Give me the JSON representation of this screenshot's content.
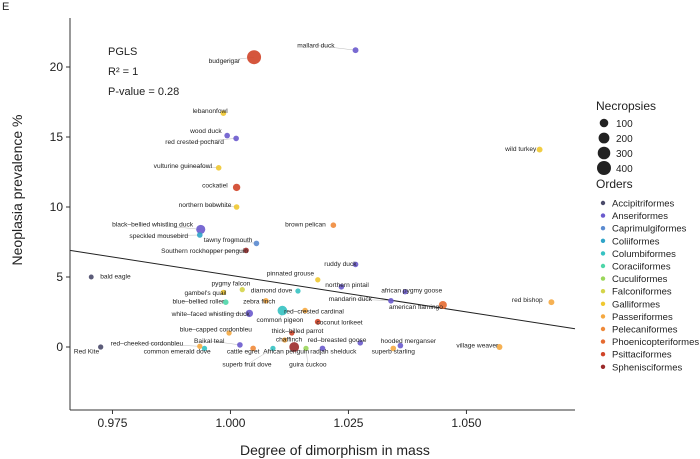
{
  "panel_label": "E",
  "chart_data": {
    "type": "scatter",
    "xlabel": "Degree of dimorphism in mass",
    "ylabel": "Neoplasia prevalence %",
    "xlim": [
      0.966,
      1.073
    ],
    "ylim": [
      -4.5,
      23.5
    ],
    "x_ticks": [
      {
        "value": 0.975,
        "label": "0.975"
      },
      {
        "value": 1.0,
        "label": "1.000"
      },
      {
        "value": 1.025,
        "label": "1.025"
      },
      {
        "value": 1.05,
        "label": "1.050"
      }
    ],
    "y_ticks": [
      {
        "value": 0,
        "label": "0"
      },
      {
        "value": 5,
        "label": "5"
      },
      {
        "value": 10,
        "label": "10"
      },
      {
        "value": 15,
        "label": "15"
      },
      {
        "value": 20,
        "label": "20"
      }
    ],
    "annotation": {
      "line1": "PGLS",
      "line2": "R² = 1",
      "line3": "P-value = 0.28"
    },
    "regression_line": {
      "x1": 0.966,
      "y1": 6.9,
      "x2": 1.073,
      "y2": 1.3,
      "color": "#222222"
    },
    "size_legend": {
      "title": "Necropsies",
      "entries": [
        {
          "label": "100",
          "value": 100
        },
        {
          "label": "200",
          "value": 200
        },
        {
          "label": "300",
          "value": 300
        },
        {
          "label": "400",
          "value": 400
        }
      ]
    },
    "color_legend": {
      "title": "Orders",
      "entries": [
        {
          "label": "Accipitriformes",
          "color": "#4a4a6a"
        },
        {
          "label": "Anseriformes",
          "color": "#6a5acd"
        },
        {
          "label": "Caprimulgiformes",
          "color": "#5b8bd0"
        },
        {
          "label": "Coliiformes",
          "color": "#2fa4c8"
        },
        {
          "label": "Columbiformes",
          "color": "#35c2c2"
        },
        {
          "label": "Coraciiformes",
          "color": "#4ed6a8"
        },
        {
          "label": "Cuculiformes",
          "color": "#9ad65a"
        },
        {
          "label": "Falconiformes",
          "color": "#d4d44a"
        },
        {
          "label": "Galliformes",
          "color": "#f0c830"
        },
        {
          "label": "Passeriformes",
          "color": "#f5a840"
        },
        {
          "label": "Pelecaniformes",
          "color": "#ef8a3a"
        },
        {
          "label": "Phoenicopteriformes",
          "color": "#e56a30"
        },
        {
          "label": "Psittaciformes",
          "color": "#d04428"
        },
        {
          "label": "Sphenisciformes",
          "color": "#9b2a2a"
        }
      ]
    },
    "points": [
      {
        "species": "mallard duck",
        "order": "Anseriformes",
        "x": 1.0265,
        "y": 21.2,
        "necropsies": 25,
        "color": "#6a5acd",
        "lx": 1.0181,
        "ly": 21.4,
        "anchor": "middle",
        "leader": false
      },
      {
        "species": "budgerigar",
        "order": "Psittaciformes",
        "x": 1.005,
        "y": 20.7,
        "necropsies": 400,
        "color": "#d04428",
        "lx": 0.9987,
        "ly": 20.3,
        "anchor": "middle",
        "leader": false
      },
      {
        "species": "lebanonfowl",
        "order": "Galliformes",
        "x": 0.9985,
        "y": 16.7,
        "necropsies": 20,
        "color": "#f0c830",
        "lx": 0.9957,
        "ly": 16.7,
        "anchor": "middle",
        "leader": false
      },
      {
        "species": "wood duck",
        "order": "Anseriformes",
        "x": 0.9993,
        "y": 15.1,
        "necropsies": 20,
        "color": "#6a5acd",
        "lx": 0.9948,
        "ly": 15.3,
        "anchor": "middle",
        "leader": false
      },
      {
        "species": "red crested pochard",
        "order": "Anseriformes",
        "x": 1.0012,
        "y": 14.9,
        "necropsies": 20,
        "color": "#6a5acd",
        "lx": 0.9924,
        "ly": 14.5,
        "anchor": "middle",
        "leader": false
      },
      {
        "species": "wild turkey",
        "order": "Galliformes",
        "x": 1.0655,
        "y": 14.1,
        "necropsies": 25,
        "color": "#f0c830",
        "lx": 1.0615,
        "ly": 14.0,
        "anchor": "middle",
        "leader": false
      },
      {
        "species": "vulturine guineafowl",
        "order": "Galliformes",
        "x": 0.9975,
        "y": 12.8,
        "necropsies": 20,
        "color": "#f0c830",
        "lx": 0.9899,
        "ly": 12.8,
        "anchor": "middle",
        "leader": false
      },
      {
        "species": "cockatiel",
        "order": "Psittaciformes",
        "x": 1.0013,
        "y": 11.4,
        "necropsies": 60,
        "color": "#d04428",
        "lx": 0.9967,
        "ly": 11.4,
        "anchor": "middle",
        "leader": false
      },
      {
        "species": "northern bobwhite",
        "order": "Galliformes",
        "x": 1.0013,
        "y": 10.0,
        "necropsies": 20,
        "color": "#f0c830",
        "lx": 0.9946,
        "ly": 10.0,
        "anchor": "middle",
        "leader": false
      },
      {
        "species": "brown pelican",
        "order": "Pelecaniformes",
        "x": 1.0218,
        "y": 8.7,
        "necropsies": 20,
        "color": "#ef8a3a",
        "lx": 1.0159,
        "ly": 8.6,
        "anchor": "middle",
        "leader": false
      },
      {
        "species": "black–bellied whistling duck",
        "order": "Anseriformes",
        "x": 0.9937,
        "y": 8.4,
        "necropsies": 120,
        "color": "#6a5acd",
        "lx": 0.9835,
        "ly": 8.6,
        "anchor": "middle",
        "leader": false
      },
      {
        "species": "speckled mousebird",
        "order": "Coliiformes",
        "x": 0.9935,
        "y": 8.0,
        "necropsies": 20,
        "color": "#2fa4c8",
        "lx": 0.9848,
        "ly": 7.8,
        "anchor": "middle",
        "leader": false
      },
      {
        "species": "tawny frogmouth",
        "order": "Caprimulgiformes",
        "x": 1.0055,
        "y": 7.4,
        "necropsies": 20,
        "color": "#5b8bd0",
        "lx": 0.9995,
        "ly": 7.5,
        "anchor": "middle",
        "leader": false
      },
      {
        "species": "Southern rockhopper penguin",
        "order": "Sphenisciformes",
        "x": 1.0033,
        "y": 6.9,
        "necropsies": 20,
        "color": "#9b2a2a",
        "lx": 0.9945,
        "ly": 6.7,
        "anchor": "middle",
        "leader": false
      },
      {
        "species": "ruddy duck",
        "order": "Anseriformes",
        "x": 1.0265,
        "y": 5.9,
        "necropsies": 20,
        "color": "#6a5acd",
        "lx": 1.0233,
        "ly": 5.8,
        "anchor": "middle",
        "leader": false
      },
      {
        "species": "bald eagle",
        "order": "Accipitriformes",
        "x": 0.9705,
        "y": 5.0,
        "necropsies": 10,
        "color": "#4a4a6a",
        "lx": 0.9724,
        "ly": 4.9,
        "anchor": "start",
        "leader": false
      },
      {
        "species": "pinnated grouse",
        "order": "Galliformes",
        "x": 1.0185,
        "y": 4.8,
        "necropsies": 15,
        "color": "#f0c830",
        "lx": 1.0127,
        "ly": 5.1,
        "anchor": "middle",
        "leader": false
      },
      {
        "species": "northern pintail",
        "order": "Anseriformes",
        "x": 1.0235,
        "y": 4.3,
        "necropsies": 20,
        "color": "#6a5acd",
        "lx": 1.0247,
        "ly": 4.3,
        "anchor": "middle",
        "leader": false
      },
      {
        "species": "pygmy falcon",
        "order": "Falconiformes",
        "x": 1.0025,
        "y": 4.1,
        "necropsies": 15,
        "color": "#d4d44a",
        "lx": 1.0001,
        "ly": 4.4,
        "anchor": "middle",
        "leader": false
      },
      {
        "species": "diamond dove",
        "order": "Columbiformes",
        "x": 1.0143,
        "y": 4.0,
        "necropsies": 15,
        "color": "#35c2c2",
        "lx": 1.0087,
        "ly": 3.9,
        "anchor": "middle",
        "leader": false
      },
      {
        "species": "african pygmy goose",
        "order": "Anseriformes",
        "x": 1.037,
        "y": 3.95,
        "necropsies": 15,
        "color": "#6a5acd",
        "lx": 1.0384,
        "ly": 3.9,
        "anchor": "middle",
        "leader": false
      },
      {
        "species": "gambel's quail",
        "order": "Galliformes",
        "x": 0.9985,
        "y": 3.9,
        "necropsies": 15,
        "color": "#f0c830",
        "lx": 0.9947,
        "ly": 3.7,
        "anchor": "middle",
        "leader": false
      },
      {
        "species": "zebra finch",
        "order": "Passeriformes",
        "x": 1.0075,
        "y": 3.3,
        "necropsies": 20,
        "color": "#f5a840",
        "lx": 1.0061,
        "ly": 3.1,
        "anchor": "middle",
        "leader": false
      },
      {
        "species": "blue–bellied roller",
        "order": "Coraciiformes",
        "x": 0.999,
        "y": 3.2,
        "necropsies": 20,
        "color": "#4ed6a8",
        "lx": 0.9932,
        "ly": 3.1,
        "anchor": "middle",
        "leader": false
      },
      {
        "species": "mandarin duck",
        "order": "Anseriformes",
        "x": 1.034,
        "y": 3.3,
        "necropsies": 20,
        "color": "#6a5acd",
        "lx": 1.0254,
        "ly": 3.3,
        "anchor": "middle",
        "leader": false
      },
      {
        "species": "red bishop",
        "order": "Passeriformes",
        "x": 1.068,
        "y": 3.2,
        "necropsies": 25,
        "color": "#f5a840",
        "lx": 1.0629,
        "ly": 3.2,
        "anchor": "middle",
        "leader": false
      },
      {
        "species": "american flamingo",
        "order": "Phoenicopteriformes",
        "x": 1.045,
        "y": 3.0,
        "necropsies": 80,
        "color": "#e56a30",
        "lx": 1.0393,
        "ly": 2.7,
        "anchor": "middle",
        "leader": false
      },
      {
        "species": "red–crested cardinal",
        "order": "Passeriformes",
        "x": 1.0158,
        "y": 2.6,
        "necropsies": 20,
        "color": "#f5a840",
        "lx": 1.0177,
        "ly": 2.4,
        "anchor": "middle",
        "leader": false
      },
      {
        "species": "white–faced whistling duck",
        "order": "Anseriformes",
        "x": 1.004,
        "y": 2.4,
        "necropsies": 60,
        "color": "#6a5acd",
        "lx": 0.9958,
        "ly": 2.2,
        "anchor": "middle",
        "leader": false
      },
      {
        "species": "common pigeon",
        "order": "Columbiformes",
        "x": 1.011,
        "y": 2.6,
        "necropsies": 140,
        "color": "#35c2c2",
        "lx": 1.0105,
        "ly": 1.8,
        "anchor": "middle",
        "leader": false
      },
      {
        "species": "coconut lorikeet",
        "order": "Psittaciformes",
        "x": 1.0185,
        "y": 1.8,
        "necropsies": 25,
        "color": "#d04428",
        "lx": 1.0231,
        "ly": 1.6,
        "anchor": "middle",
        "leader": false
      },
      {
        "species": "thick–billed parrot",
        "order": "Psittaciformes",
        "x": 1.013,
        "y": 1.0,
        "necropsies": 15,
        "color": "#d04428",
        "lx": 1.0142,
        "ly": 1.0,
        "anchor": "middle",
        "leader": false
      },
      {
        "species": "blue–capped cordonbleu",
        "order": "Passeriformes",
        "x": 0.9997,
        "y": 1.0,
        "necropsies": 15,
        "color": "#f5a840",
        "lx": 0.9969,
        "ly": 1.1,
        "anchor": "middle",
        "leader": false
      },
      {
        "species": "chaffinch",
        "order": "Passeriformes",
        "x": 1.0115,
        "y": 0.5,
        "necropsies": 15,
        "color": "#f5a840",
        "lx": 1.0124,
        "ly": 0.4,
        "anchor": "middle",
        "leader": false
      },
      {
        "species": "red–breasted goose",
        "order": "Anseriformes",
        "x": 1.0275,
        "y": 0.3,
        "necropsies": 20,
        "color": "#6a5acd",
        "lx": 1.0226,
        "ly": 0.35,
        "anchor": "middle",
        "leader": false
      },
      {
        "species": "hooded merganser",
        "order": "Anseriformes",
        "x": 1.036,
        "y": 0.1,
        "necropsies": 20,
        "color": "#6a5acd",
        "lx": 1.0377,
        "ly": 0.3,
        "anchor": "middle",
        "leader": false
      },
      {
        "species": "Baikal teal",
        "order": "Anseriformes",
        "x": 1.002,
        "y": 0.15,
        "necropsies": 20,
        "color": "#6a5acd",
        "lx": 0.9955,
        "ly": 0.3,
        "anchor": "middle",
        "leader": false
      },
      {
        "species": "red–cheeked cordonbleu",
        "order": "Passeriformes",
        "x": 0.9935,
        "y": 0.05,
        "necropsies": 15,
        "color": "#f5a840",
        "lx": 0.9823,
        "ly": 0.1,
        "anchor": "middle",
        "leader": false
      },
      {
        "species": "village weaver",
        "order": "Passeriformes",
        "x": 1.057,
        "y": 0.0,
        "necropsies": 25,
        "color": "#f5a840",
        "lx": 1.0523,
        "ly": -0.05,
        "anchor": "middle",
        "leader": false
      },
      {
        "species": "superb starling",
        "order": "Passeriformes",
        "x": 1.0345,
        "y": -0.1,
        "necropsies": 20,
        "color": "#f5a840",
        "lx": 1.0345,
        "ly": -0.45,
        "anchor": "middle",
        "leader": false
      },
      {
        "species": "radjah shelduck",
        "order": "Anseriformes",
        "x": 1.0195,
        "y": -0.1,
        "necropsies": 20,
        "color": "#6a5acd",
        "lx": 1.0218,
        "ly": -0.45,
        "anchor": "middle",
        "leader": false
      },
      {
        "species": "African penguin",
        "order": "Sphenisciformes",
        "x": 1.0135,
        "y": 0.0,
        "necropsies": 150,
        "color": "#9b2a2a",
        "lx": 1.0118,
        "ly": -0.45,
        "anchor": "middle",
        "leader": false
      },
      {
        "species": "cattle egret",
        "order": "Pelecaniformes",
        "x": 1.0048,
        "y": -0.1,
        "necropsies": 20,
        "color": "#ef8a3a",
        "lx": 1.0027,
        "ly": -0.45,
        "anchor": "middle",
        "leader": false
      },
      {
        "species": "common emerald dove",
        "order": "Columbiformes",
        "x": 0.9945,
        "y": -0.1,
        "necropsies": 15,
        "color": "#35c2c2",
        "lx": 0.9887,
        "ly": -0.45,
        "anchor": "middle",
        "leader": false
      },
      {
        "species": "Red Kite",
        "order": "Accipitriformes",
        "x": 0.9725,
        "y": 0.0,
        "necropsies": 15,
        "color": "#4a4a6a",
        "lx": 0.9695,
        "ly": -0.45,
        "anchor": "middle",
        "leader": false
      },
      {
        "species": "superb fruit dove",
        "order": "Columbiformes",
        "x": 1.009,
        "y": -0.1,
        "necropsies": 15,
        "color": "#35c2c2",
        "lx": 1.0035,
        "ly": -1.4,
        "anchor": "middle",
        "leader": false
      },
      {
        "species": "guira cuckoo",
        "order": "Cuculiformes",
        "x": 1.016,
        "y": -0.1,
        "necropsies": 15,
        "color": "#9ad65a",
        "lx": 1.0164,
        "ly": -1.4,
        "anchor": "middle",
        "leader": false
      }
    ]
  }
}
